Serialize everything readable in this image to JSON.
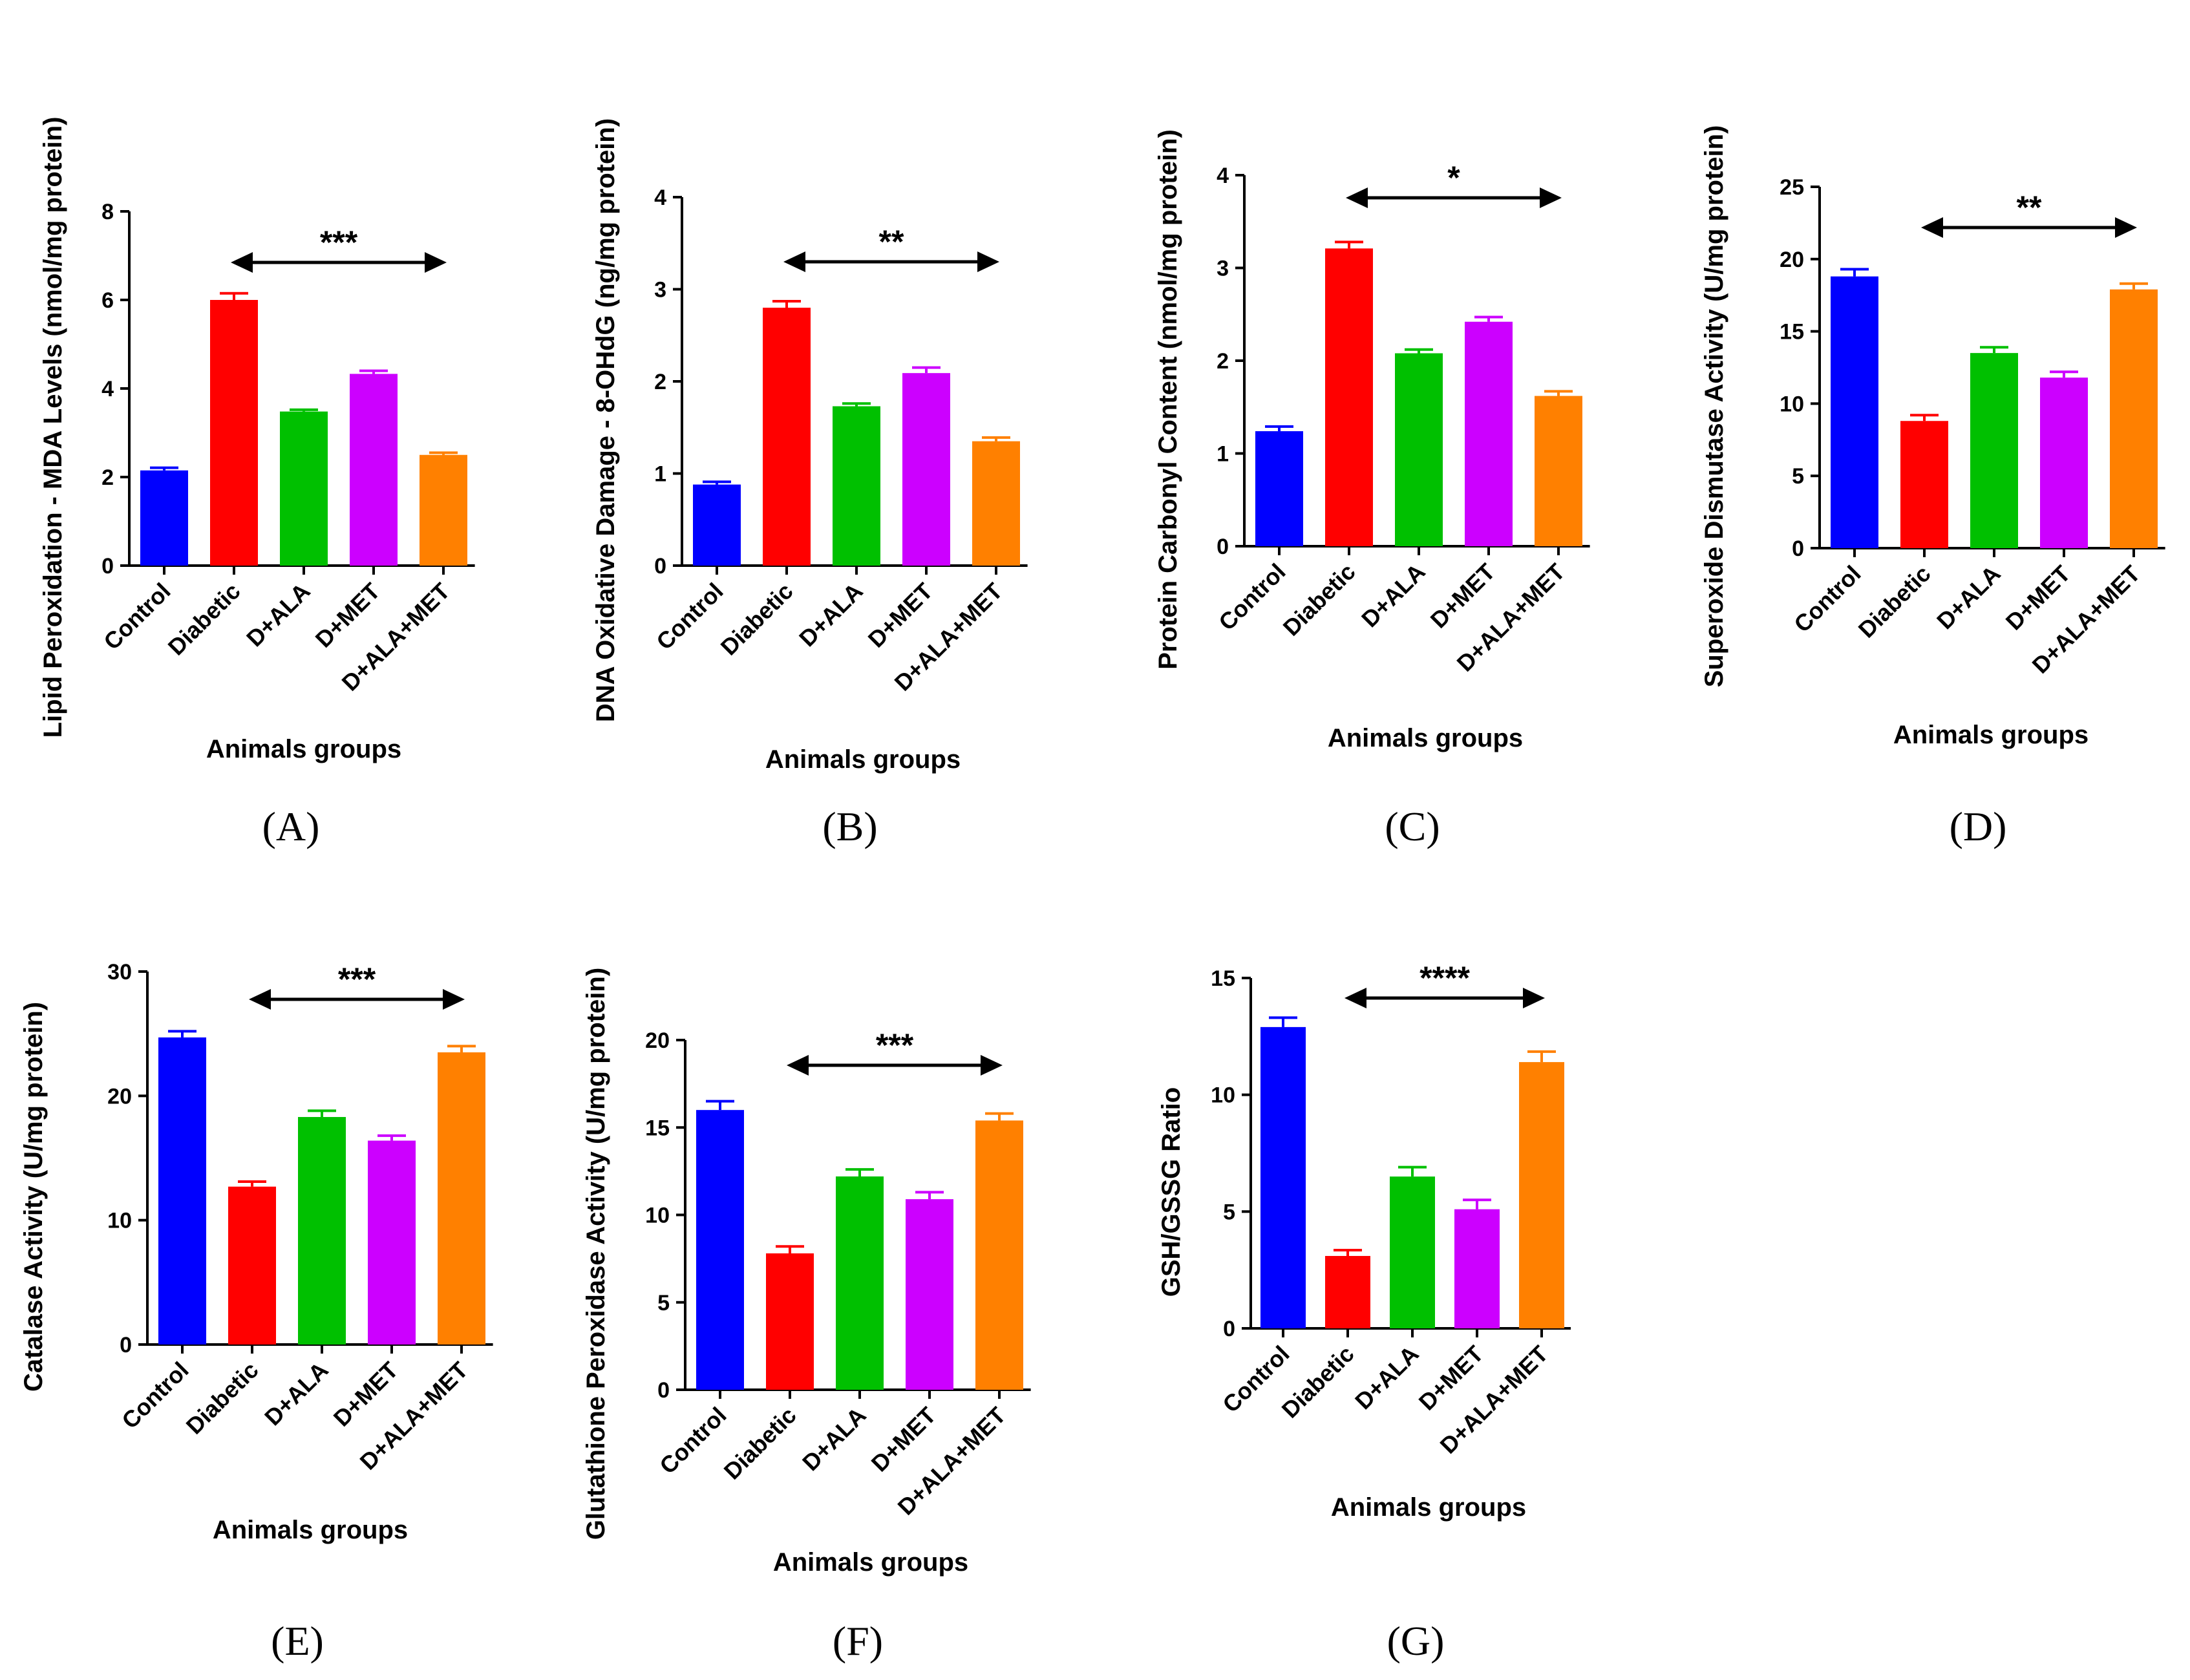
{
  "colors": {
    "Control": "#0000ff",
    "Diabetic": "#ff0000",
    "D+ALA": "#00c000",
    "D+MET": "#cc00ff",
    "D+ALA+MET": "#ff8000"
  },
  "chart_data": [
    {
      "id": "A",
      "type": "bar",
      "panel_label": "(A)",
      "ylabel": "Lipid Peroxidation - MDA Levels (nmol/mg protein)",
      "xlabel": "Animals groups",
      "categories": [
        "Control",
        "Diabetic",
        "D+ALA",
        "D+MET",
        "D+ALA+MET"
      ],
      "values": [
        2.15,
        6.0,
        3.48,
        4.33,
        2.5
      ],
      "errors": [
        0.06,
        0.15,
        0.04,
        0.07,
        0.05
      ],
      "ylim": [
        0,
        8
      ],
      "yticks": [
        "0",
        "2",
        "4",
        "6",
        "8"
      ],
      "significance": "***",
      "sig_span": [
        "Diabetic",
        "D+ALA+MET"
      ]
    },
    {
      "id": "B",
      "type": "bar",
      "panel_label": "(B)",
      "ylabel": "DNA Oxidative Damage - 8-OHdG (ng/mg protein)",
      "xlabel": "Animals groups",
      "categories": [
        "Control",
        "Diabetic",
        "D+ALA",
        "D+MET",
        "D+ALA+MET"
      ],
      "values": [
        0.88,
        2.8,
        1.73,
        2.09,
        1.35
      ],
      "errors": [
        0.03,
        0.07,
        0.03,
        0.06,
        0.04
      ],
      "ylim": [
        0,
        4
      ],
      "yticks": [
        "0",
        "1",
        "2",
        "3",
        "4"
      ],
      "significance": "**",
      "sig_span": [
        "Diabetic",
        "D+ALA+MET"
      ]
    },
    {
      "id": "C",
      "type": "bar",
      "panel_label": "(C)",
      "ylabel": "Protein Carbonyl Content (nmol/mg protein)",
      "xlabel": "Animals groups",
      "categories": [
        "Control",
        "Diabetic",
        "D+ALA",
        "D+MET",
        "D+ALA+MET"
      ],
      "values": [
        1.24,
        3.21,
        2.08,
        2.42,
        1.62
      ],
      "errors": [
        0.05,
        0.07,
        0.04,
        0.05,
        0.05
      ],
      "ylim": [
        0,
        4
      ],
      "yticks": [
        "0",
        "1",
        "2",
        "3",
        "4"
      ],
      "significance": "*",
      "sig_span": [
        "Diabetic",
        "D+ALA+MET"
      ]
    },
    {
      "id": "D",
      "type": "bar",
      "panel_label": "(D)",
      "ylabel": "Superoxide Dismutase Activity (U/mg protein)",
      "xlabel": "Animals groups",
      "categories": [
        "Control",
        "Diabetic",
        "D+ALA",
        "D+MET",
        "D+ALA+MET"
      ],
      "values": [
        18.8,
        8.8,
        13.5,
        11.8,
        17.9
      ],
      "errors": [
        0.5,
        0.4,
        0.4,
        0.4,
        0.4
      ],
      "ylim": [
        0,
        25
      ],
      "yticks": [
        "0",
        "5",
        "10",
        "15",
        "20",
        "25"
      ],
      "significance": "**",
      "sig_span": [
        "Diabetic",
        "D+ALA+MET"
      ]
    },
    {
      "id": "E",
      "type": "bar",
      "panel_label": "(E)",
      "ylabel": "Catalase Activity (U/mg protein)",
      "xlabel": "Animals groups",
      "categories": [
        "Control",
        "Diabetic",
        "D+ALA",
        "D+MET",
        "D+ALA+MET"
      ],
      "values": [
        24.7,
        12.7,
        18.3,
        16.4,
        23.5
      ],
      "errors": [
        0.5,
        0.4,
        0.5,
        0.4,
        0.5
      ],
      "ylim": [
        0,
        30
      ],
      "yticks": [
        "0",
        "10",
        "20",
        "30"
      ],
      "significance": "***",
      "sig_span": [
        "Diabetic",
        "D+ALA+MET"
      ]
    },
    {
      "id": "F",
      "type": "bar",
      "panel_label": "(F)",
      "ylabel": "Glutathione Peroxidase Activity (U/mg protein)",
      "xlabel": "Animals groups",
      "categories": [
        "Control",
        "Diabetic",
        "D+ALA",
        "D+MET",
        "D+ALA+MET"
      ],
      "values": [
        16.0,
        7.8,
        12.2,
        10.9,
        15.4
      ],
      "errors": [
        0.5,
        0.4,
        0.4,
        0.4,
        0.4
      ],
      "ylim": [
        0,
        20
      ],
      "yticks": [
        "0",
        "5",
        "10",
        "15",
        "20"
      ],
      "significance": "***",
      "sig_span": [
        "Diabetic",
        "D+ALA+MET"
      ]
    },
    {
      "id": "G",
      "type": "bar",
      "panel_label": "(G)",
      "ylabel": "GSH/GSSG Ratio",
      "xlabel": "Animals groups",
      "categories": [
        "Control",
        "Diabetic",
        "D+ALA",
        "D+MET",
        "D+ALA+MET"
      ],
      "values": [
        12.9,
        3.1,
        6.5,
        5.1,
        11.4
      ],
      "errors": [
        0.4,
        0.25,
        0.4,
        0.4,
        0.45
      ],
      "ylim": [
        0,
        15
      ],
      "yticks": [
        "0",
        "5",
        "10",
        "15"
      ],
      "significance": "****",
      "sig_span": [
        "Diabetic",
        "D+ALA+MET"
      ]
    }
  ]
}
